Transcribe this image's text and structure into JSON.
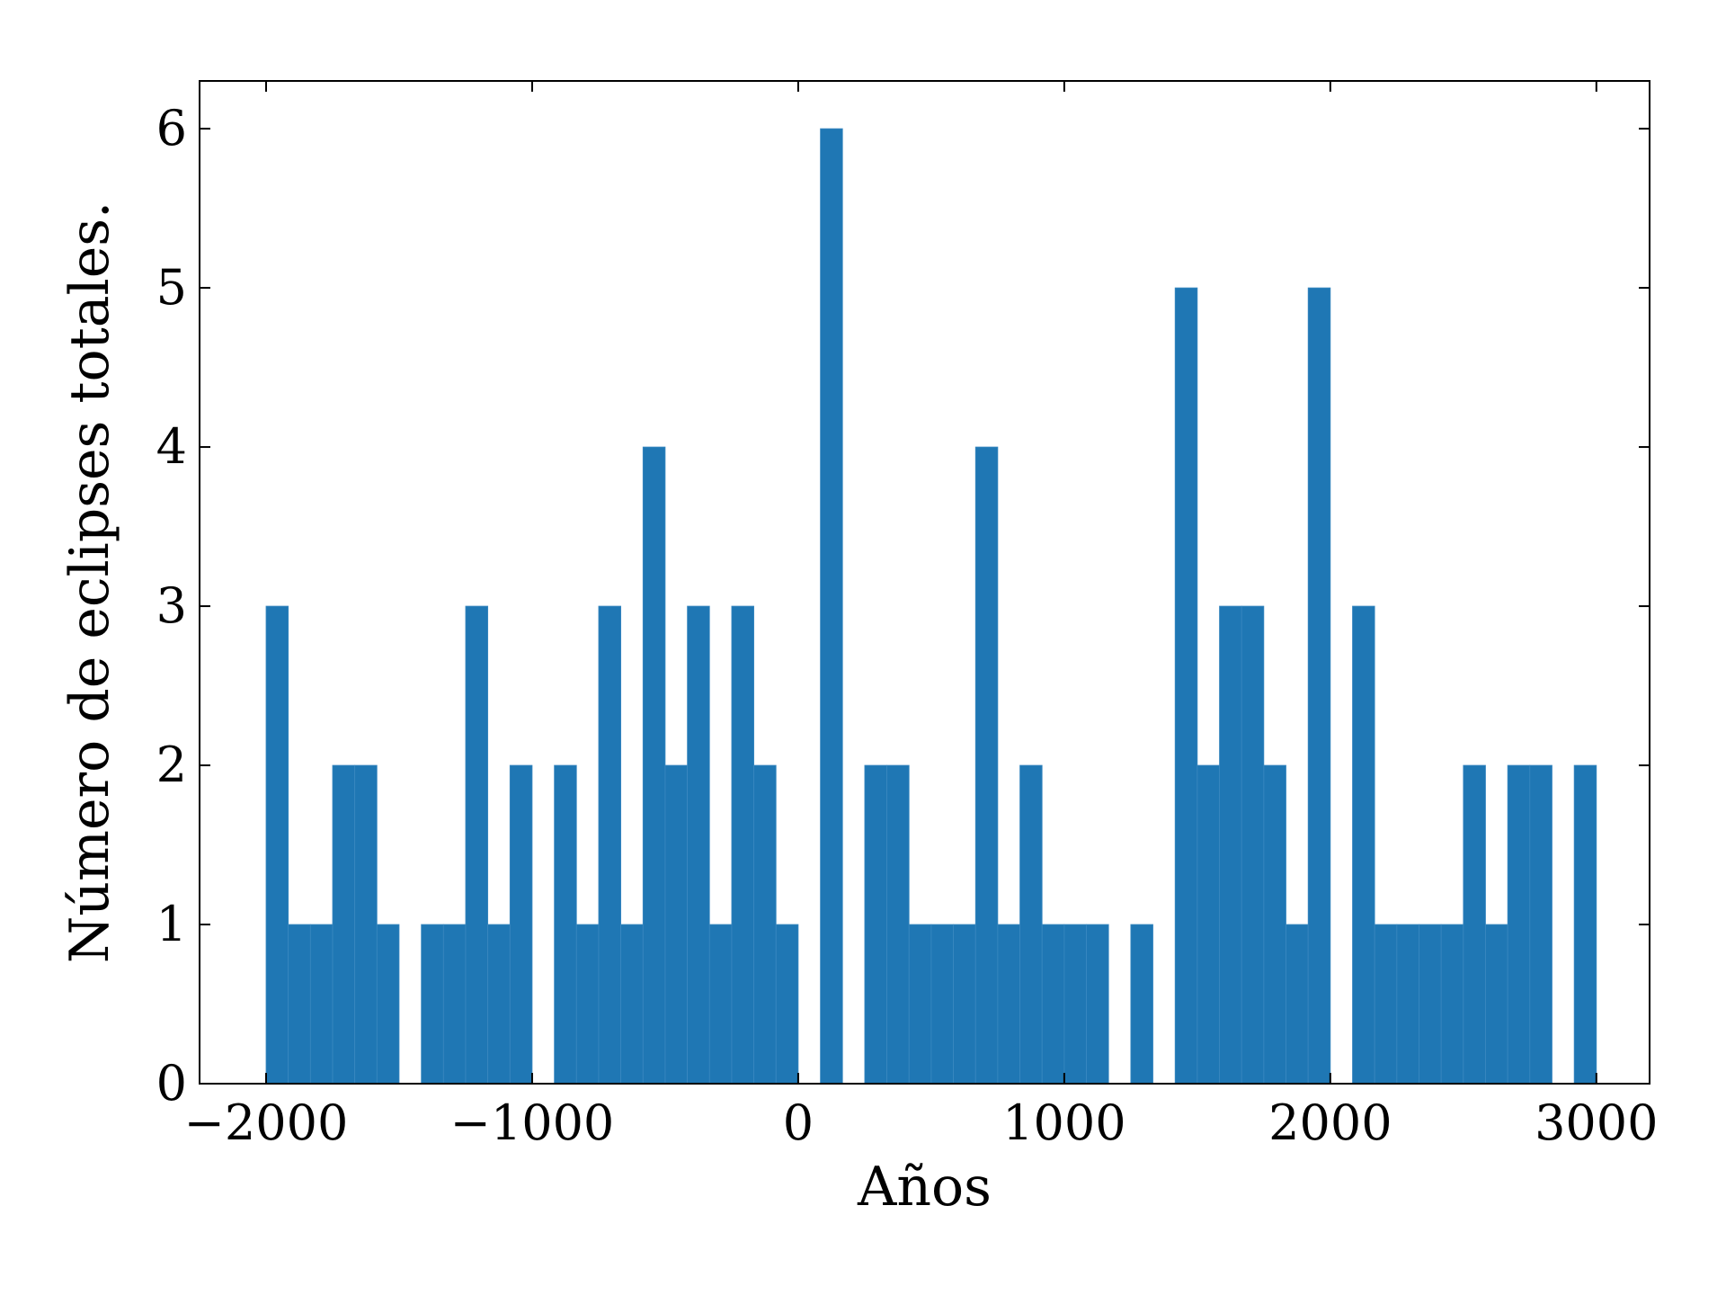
{
  "chart_data": {
    "type": "bar",
    "title": "",
    "xlabel": "Años",
    "ylabel": "Número de eclipses totales.",
    "xlim": [
      -2250,
      3200
    ],
    "ylim": [
      0,
      6.3
    ],
    "bin_width": 83.33,
    "bar_color": "#1f77b4",
    "grid": false,
    "xticks": [
      -2000,
      -1000,
      0,
      1000,
      2000,
      3000
    ],
    "xtick_labels": [
      "−2000",
      "−1000",
      "0",
      "1000",
      "2000",
      "3000"
    ],
    "yticks": [
      0,
      1,
      2,
      3,
      4,
      5,
      6
    ],
    "ytick_labels": [
      "0",
      "1",
      "2",
      "3",
      "4",
      "5",
      "6"
    ],
    "bins_start": [
      -2000,
      -1916.67,
      -1833.33,
      -1750,
      -1666.67,
      -1583.33,
      -1500,
      -1416.67,
      -1333.33,
      -1250,
      -1166.67,
      -1083.33,
      -1000,
      -916.67,
      -833.33,
      -750,
      -666.67,
      -583.33,
      -500,
      -416.67,
      -333.33,
      -250,
      -166.67,
      -83.33,
      0,
      83.33,
      166.67,
      250,
      333.33,
      416.67,
      500,
      583.33,
      666.67,
      750,
      833.33,
      916.67,
      1000,
      1083.33,
      1166.67,
      1250,
      1333.33,
      1416.67,
      1500,
      1583.33,
      1666.67,
      1750,
      1833.33,
      1916.67,
      2000,
      2083.33,
      2166.67,
      2250,
      2333.33,
      2416.67,
      2500,
      2583.33,
      2666.67,
      2750,
      2833.33,
      2916.67
    ],
    "values": [
      3,
      1,
      1,
      2,
      2,
      1,
      0,
      1,
      1,
      3,
      1,
      2,
      0,
      2,
      1,
      3,
      1,
      4,
      2,
      3,
      1,
      3,
      2,
      1,
      0,
      6,
      0,
      2,
      2,
      1,
      1,
      1,
      4,
      1,
      2,
      1,
      1,
      1,
      0,
      1,
      0,
      5,
      2,
      3,
      3,
      2,
      1,
      5,
      0,
      3,
      1,
      1,
      1,
      1,
      2,
      1,
      2,
      2,
      0,
      2
    ]
  }
}
